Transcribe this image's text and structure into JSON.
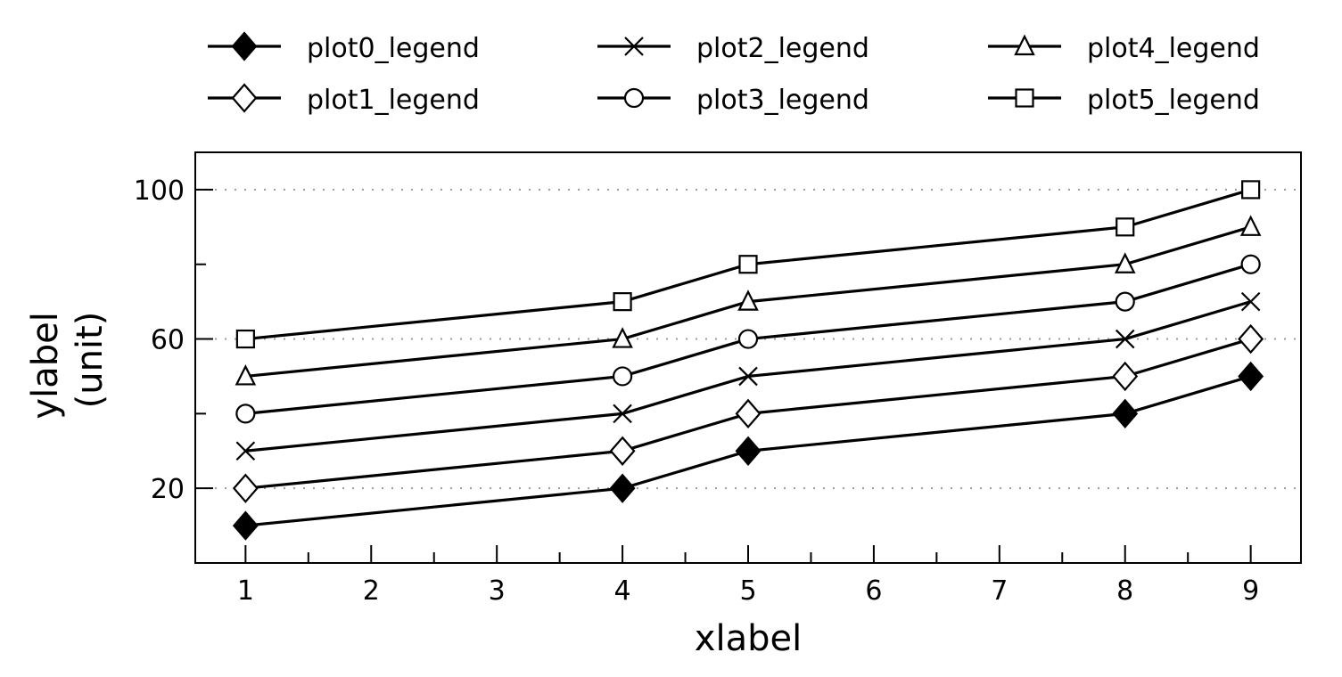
{
  "chart_data": {
    "type": "line",
    "title": "",
    "xlabel": "xlabel",
    "ylabel_lines": [
      "ylabel",
      "(unit)"
    ],
    "x": [
      1,
      4,
      5,
      8,
      9
    ],
    "xlim": [
      0.6,
      9.4
    ],
    "ylim": [
      0,
      110
    ],
    "x_major_ticks": [
      1,
      2,
      3,
      4,
      5,
      6,
      7,
      8,
      9
    ],
    "x_minor_ticks": [
      1.5,
      2.5,
      3.5,
      4.5,
      5.5,
      6.5,
      7.5,
      8.5
    ],
    "y_major_ticks": [
      20,
      60,
      100
    ],
    "y_minor_ticks": [
      40,
      80
    ],
    "grid": "horizontal dotted at major y ticks",
    "legend_position": "top, outside plot, 3 columns",
    "line_color": "#000000",
    "series": [
      {
        "name": "plot0_legend",
        "marker": "diamond-filled",
        "values": [
          10,
          20,
          30,
          40,
          50
        ]
      },
      {
        "name": "plot1_legend",
        "marker": "diamond-open",
        "values": [
          20,
          30,
          40,
          50,
          60
        ]
      },
      {
        "name": "plot2_legend",
        "marker": "x",
        "values": [
          30,
          40,
          50,
          60,
          70
        ]
      },
      {
        "name": "plot3_legend",
        "marker": "circle-open",
        "values": [
          40,
          50,
          60,
          70,
          80
        ]
      },
      {
        "name": "plot4_legend",
        "marker": "triangle-open",
        "values": [
          50,
          60,
          70,
          80,
          90
        ]
      },
      {
        "name": "plot5_legend",
        "marker": "square-open",
        "values": [
          60,
          70,
          80,
          90,
          100
        ]
      }
    ]
  }
}
